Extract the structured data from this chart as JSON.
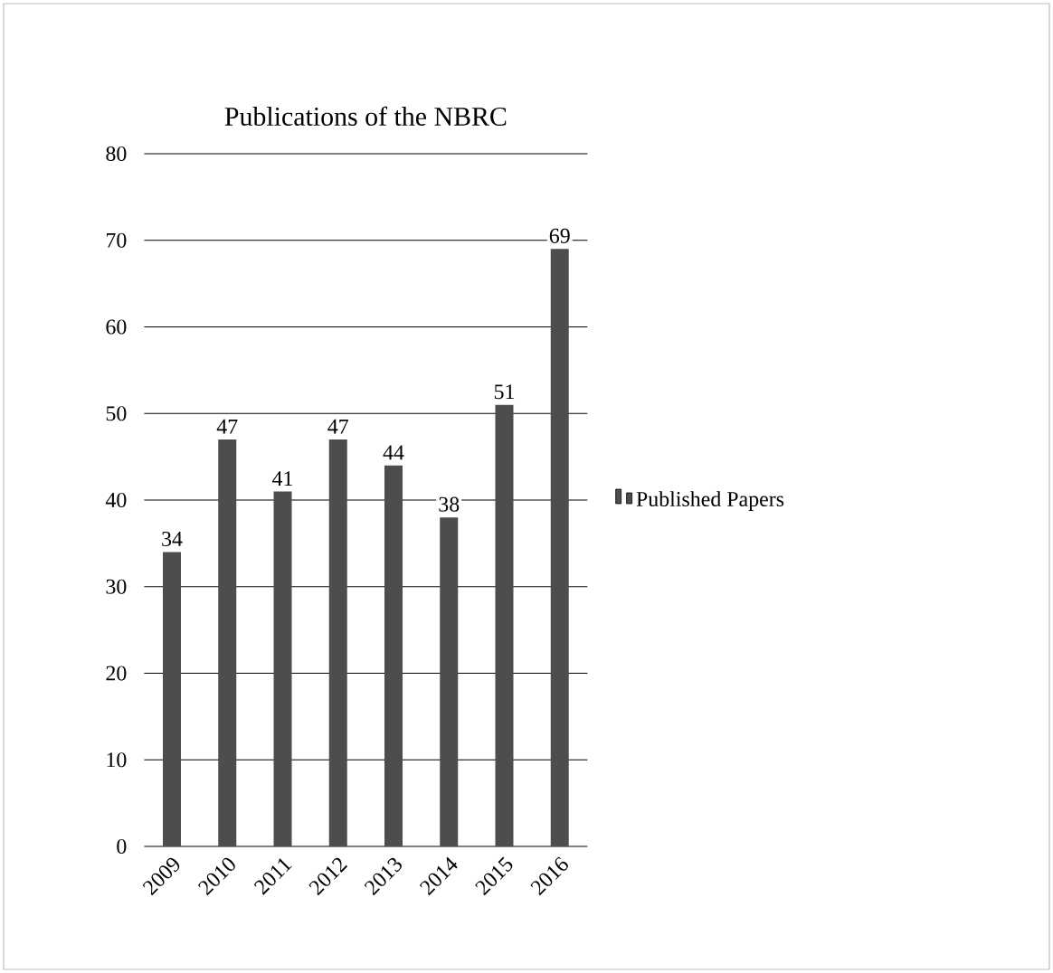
{
  "chart_data": {
    "type": "bar",
    "title": "Publications of the NBRC",
    "categories": [
      "2009",
      "2010",
      "2011",
      "2012",
      "2013",
      "2014",
      "2015",
      "2016"
    ],
    "series": [
      {
        "name": "Published Papers",
        "color": "#4d4d4d",
        "values": [
          34,
          47,
          41,
          47,
          44,
          38,
          51,
          69
        ]
      }
    ],
    "ylim": [
      0,
      80
    ],
    "yticks": [
      0,
      10,
      20,
      30,
      40,
      50,
      60,
      70,
      80
    ],
    "grid": "y",
    "legend": "right",
    "data_labels": true
  }
}
